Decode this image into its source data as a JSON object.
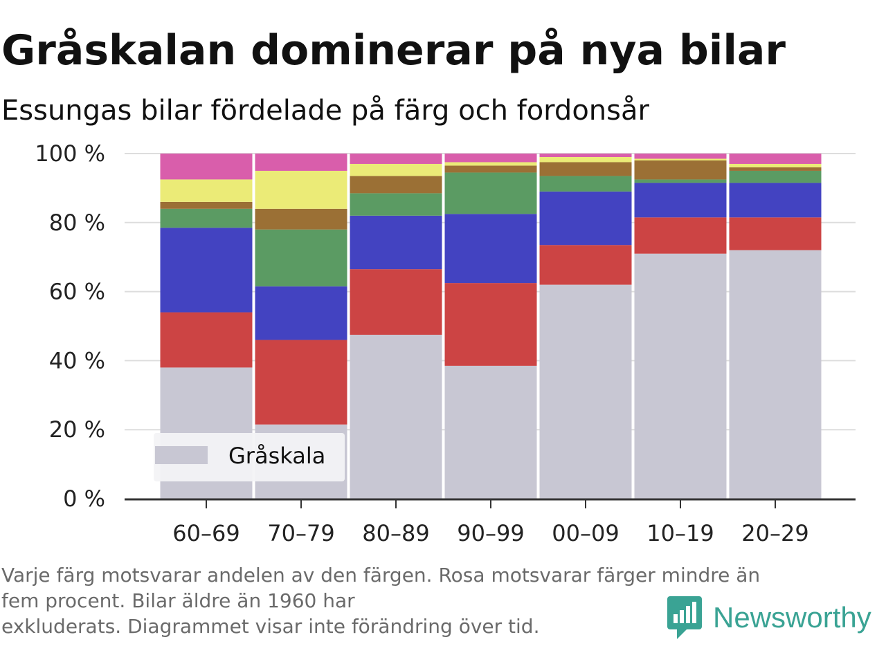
{
  "title": "Gråskalan dominerar på nya bilar",
  "subtitle": "Essungas bilar fördelade på färg och fordonsår",
  "footnote": {
    "line1": "Varje färg motsvarar andelen av den färgen. Rosa motsvarar färger mindre än",
    "line2": "fem procent. Bilar äldre än 1960 har",
    "line3": "exkluderats. Diagrammet visar inte förändring över tid."
  },
  "brand": {
    "name": "Newsworthy",
    "icon": "newsworthy-logo-icon",
    "color": "#3aa394"
  },
  "chart_data": {
    "type": "bar",
    "stacked": true,
    "categories": [
      "60–69",
      "70–79",
      "80–89",
      "90–99",
      "00–09",
      "10–19",
      "20–29"
    ],
    "y_ticks": [
      "0 %",
      "20 %",
      "40 %",
      "60 %",
      "80 %",
      "100 %"
    ],
    "ylim": [
      0,
      100
    ],
    "grid": true,
    "legend": {
      "placement": "bottom-left",
      "entries": [
        "Gråskala"
      ]
    },
    "series": [
      {
        "name": "Gråskala",
        "color": "#c8c7d3",
        "values": [
          38,
          21.5,
          47.5,
          38.5,
          62,
          71,
          72
        ]
      },
      {
        "color": "#cc4444",
        "values": [
          16,
          24.5,
          19,
          24,
          11.5,
          10.5,
          9.5
        ]
      },
      {
        "color": "#4343c1",
        "values": [
          24.5,
          15.5,
          15.5,
          20,
          15.5,
          10,
          10
        ]
      },
      {
        "color": "#5b9b63",
        "values": [
          5.5,
          16.5,
          6.5,
          12,
          4.5,
          1,
          3.5
        ]
      },
      {
        "color": "#9b7035",
        "values": [
          2,
          6,
          5,
          2,
          4,
          5.5,
          1
        ]
      },
      {
        "color": "#ebeb77",
        "values": [
          6.5,
          11,
          3.5,
          1,
          1.5,
          0.5,
          1
        ]
      },
      {
        "color": "#d95eab",
        "values": [
          7.5,
          5,
          3,
          2.5,
          1,
          1.5,
          3
        ]
      }
    ]
  }
}
